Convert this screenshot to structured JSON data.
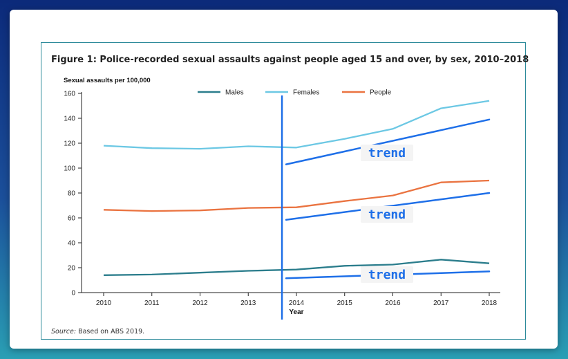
{
  "figure": {
    "title": "Figure 1: Police-recorded sexual assaults against people aged 15 and over, by sex, 2010–2018",
    "source_label": "Source:",
    "source_text": " Based on ABS 2019."
  },
  "annotation_label": "trend",
  "colors": {
    "males": "#2b7d8c",
    "females": "#6cc8e4",
    "people": "#ea7340",
    "annotation": "#1e6fe8",
    "axis": "#222222"
  },
  "chart_data": {
    "type": "line",
    "title": "Figure 1: Police-recorded sexual assaults against people aged 15 and over, by sex, 2010–2018",
    "xlabel": "Year",
    "ylabel": "Sexual assaults per 100,000",
    "x": [
      2010,
      2011,
      2012,
      2013,
      2014,
      2015,
      2016,
      2017,
      2018
    ],
    "ylim": [
      0,
      160
    ],
    "yticks": [
      0,
      20,
      40,
      60,
      80,
      100,
      120,
      140,
      160
    ],
    "grid": false,
    "legend_position": "top",
    "series": [
      {
        "name": "Males",
        "color": "#2b7d8c",
        "values": [
          14,
          14.5,
          16,
          17.5,
          18.5,
          21.5,
          22.5,
          26.5,
          23.5
        ]
      },
      {
        "name": "Females",
        "color": "#6cc8e4",
        "values": [
          118,
          116,
          115.5,
          117.5,
          116.5,
          123.5,
          131.5,
          148,
          154
        ]
      },
      {
        "name": "People",
        "color": "#ea7340",
        "values": [
          66.5,
          65.5,
          66,
          68,
          68.5,
          73.5,
          78,
          88.5,
          90
        ]
      }
    ],
    "annotations": {
      "marker_x": 2013.7,
      "trend_lines": [
        {
          "label": "trend",
          "start": [
            2013.7,
            103
          ],
          "end": [
            2018,
            139
          ]
        },
        {
          "label": "trend",
          "start": [
            2013.7,
            58.5
          ],
          "end": [
            2018,
            80
          ]
        },
        {
          "label": "trend",
          "start": [
            2013.7,
            11.5
          ],
          "end": [
            2018,
            17
          ]
        }
      ]
    }
  }
}
